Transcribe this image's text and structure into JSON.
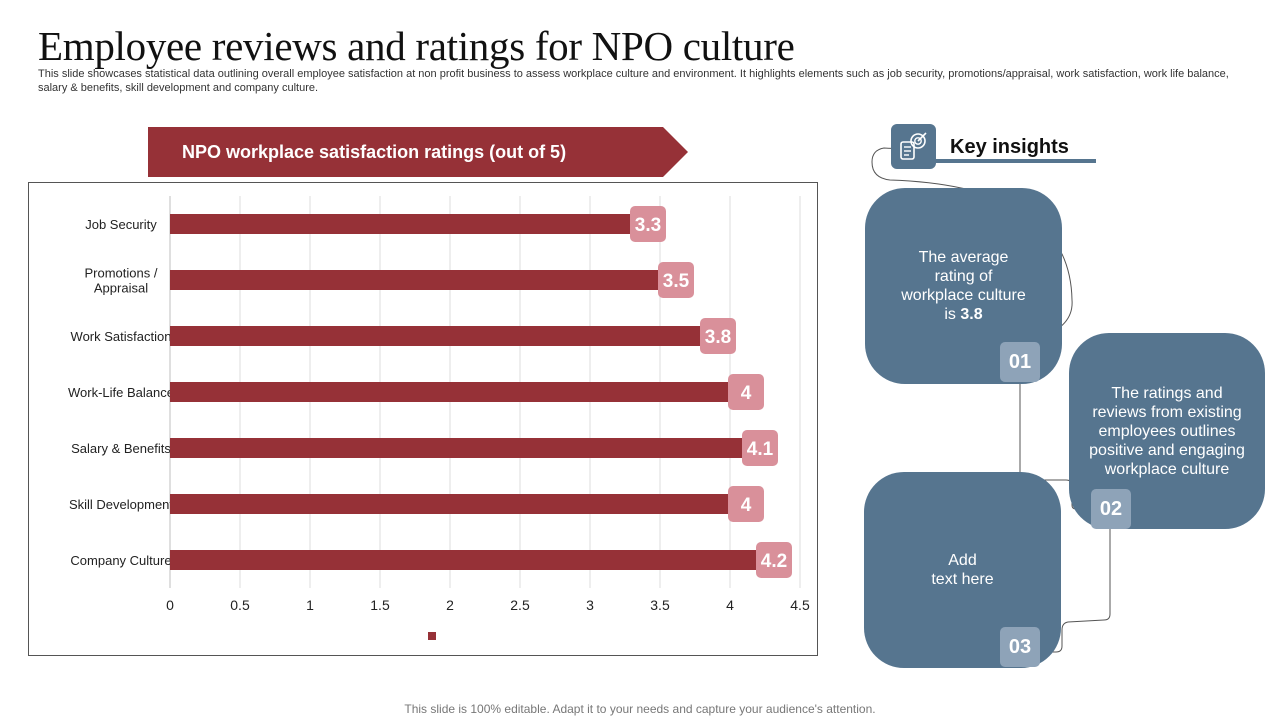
{
  "title": "Employee reviews and ratings for NPO culture",
  "subtitle": "This slide showcases statistical data outlining overall employee satisfaction at non profit business to assess workplace culture and environment. It highlights elements such as job security, promotions/appraisal, work satisfaction, work life balance, salary & benefits, skill development and company culture.",
  "banner": "NPO workplace satisfaction ratings (out of 5)",
  "chart_data": {
    "type": "bar",
    "orientation": "horizontal",
    "categories": [
      "Job Security",
      "Promotions /\nAppraisal",
      "Work Satisfaction",
      "Work-Life Balance",
      "Salary & Benefits",
      "Skill Development",
      "Company Culture"
    ],
    "values": [
      3.3,
      3.5,
      3.8,
      4,
      4.1,
      4,
      4.2
    ],
    "data_labels": [
      "3.3",
      "3.5",
      "3.8",
      "4",
      "4.1",
      "4",
      "4.2"
    ],
    "x_ticks": [
      "0",
      "0.5",
      "1",
      "1.5",
      "2",
      "2.5",
      "3",
      "3.5",
      "4",
      "4.5"
    ],
    "xlim": [
      0,
      4.5
    ],
    "grid": true,
    "legend": "bottom",
    "bar_color": "#963137",
    "label_color": "#d9909a"
  },
  "insights": {
    "title": "Key insights",
    "icon": "analytics-target-icon",
    "cards": [
      {
        "number": "01",
        "text": "The average\nrating of\nworkplace culture\nis ",
        "highlight": "3.8"
      },
      {
        "number": "02",
        "text": "The ratings and\nreviews from existing\nemployees outlines\npositive and engaging\nworkplace culture",
        "highlight": ""
      },
      {
        "number": "03",
        "text": "Add\ntext here",
        "highlight": ""
      }
    ]
  },
  "footer": "This slide is 100% editable. Adapt it to your needs and capture your audience's attention.",
  "colors": {
    "accent_red": "#963137",
    "card_blue": "#56758f",
    "number_badge": "#8ea3b8"
  }
}
